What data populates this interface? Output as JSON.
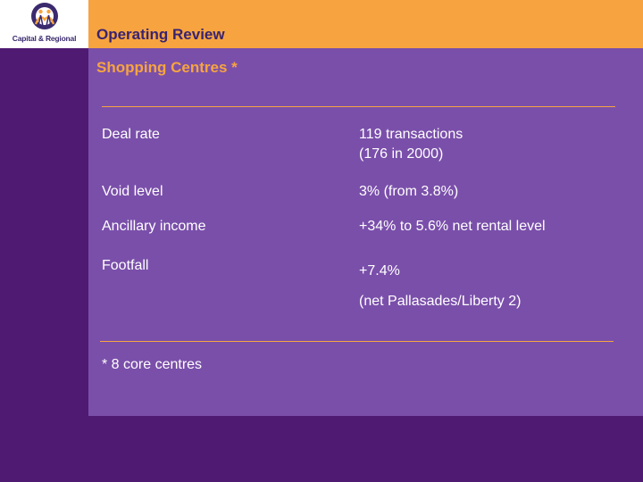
{
  "logo": {
    "text": "Capital & Regional",
    "brand_color": "#3b2a6e",
    "accent_color": "#f7a440"
  },
  "header": {
    "title": "Operating Review"
  },
  "section": {
    "title": "Shopping Centres *"
  },
  "metrics": [
    {
      "label": "Deal rate",
      "value_lines": [
        "119 transactions",
        "(176 in 2000)"
      ]
    },
    {
      "label": "Void level",
      "value_lines": [
        "3% (from 3.8%)"
      ]
    },
    {
      "label": "Ancillary income",
      "value_lines": [
        "+34% to 5.6% net rental level"
      ]
    },
    {
      "label": "Footfall",
      "value_lines": [
        "+7.4%",
        "(net Pallasades/Liberty 2)"
      ]
    }
  ],
  "footnote": "* 8 core centres",
  "colors": {
    "background": "#4e1a72",
    "panel": "#7a4faa",
    "orange": "#f7a440",
    "heading_text": "#3a2370",
    "body_text": "#ffffff"
  }
}
